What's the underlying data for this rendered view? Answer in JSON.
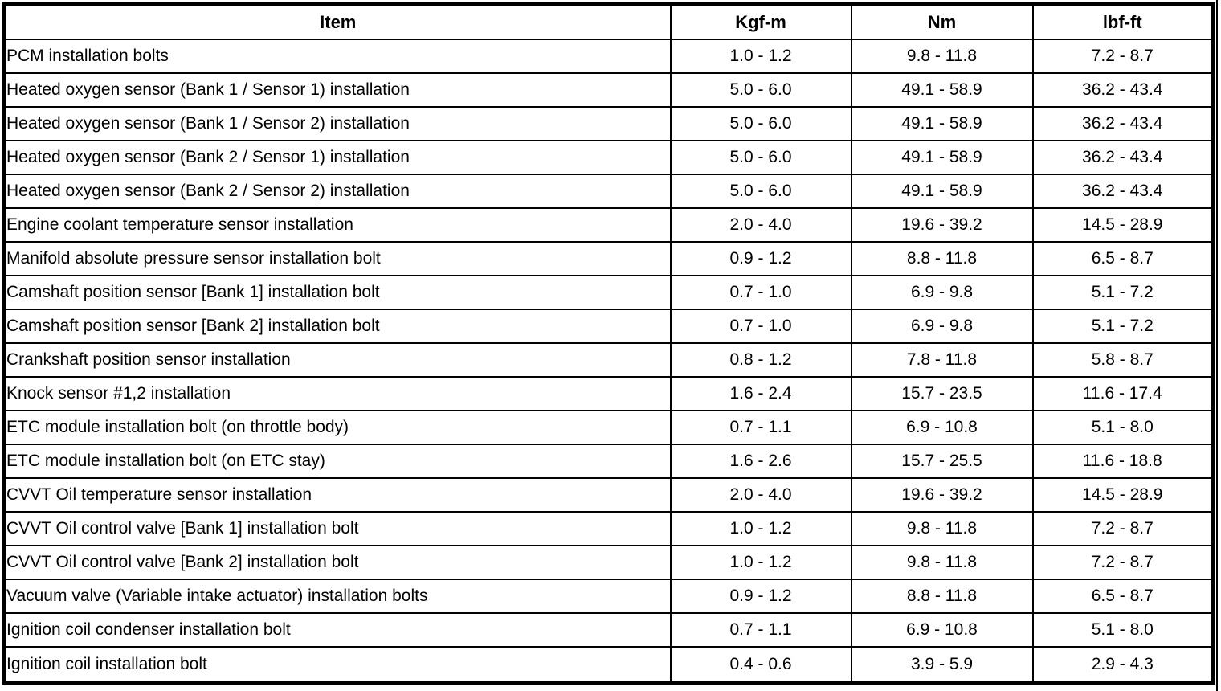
{
  "table": {
    "columns": [
      "Item",
      "Kgf-m",
      "Nm",
      "lbf-ft"
    ],
    "rows": [
      [
        "PCM installation bolts",
        "1.0 - 1.2",
        "9.8 - 11.8",
        "7.2 - 8.7"
      ],
      [
        "Heated oxygen sensor (Bank 1 / Sensor 1) installation",
        "5.0 - 6.0",
        "49.1 - 58.9",
        "36.2 - 43.4"
      ],
      [
        "Heated oxygen sensor (Bank 1 / Sensor 2) installation",
        "5.0 - 6.0",
        "49.1 - 58.9",
        "36.2 - 43.4"
      ],
      [
        "Heated oxygen sensor (Bank 2 / Sensor 1) installation",
        "5.0 - 6.0",
        "49.1 - 58.9",
        "36.2 - 43.4"
      ],
      [
        "Heated oxygen sensor (Bank 2 / Sensor 2) installation",
        "5.0 - 6.0",
        "49.1 - 58.9",
        "36.2 - 43.4"
      ],
      [
        "Engine coolant temperature sensor installation",
        "2.0 - 4.0",
        "19.6 - 39.2",
        "14.5 - 28.9"
      ],
      [
        "Manifold absolute pressure sensor installation bolt",
        "0.9 - 1.2",
        "8.8 - 11.8",
        "6.5 - 8.7"
      ],
      [
        "Camshaft position sensor [Bank 1] installation bolt",
        "0.7 - 1.0",
        "6.9 - 9.8",
        "5.1 - 7.2"
      ],
      [
        "Camshaft position sensor [Bank 2] installation bolt",
        "0.7 - 1.0",
        "6.9 - 9.8",
        "5.1 - 7.2"
      ],
      [
        "Crankshaft position sensor installation",
        "0.8 - 1.2",
        "7.8 - 11.8",
        "5.8 - 8.7"
      ],
      [
        "Knock sensor #1,2 installation",
        "1.6 - 2.4",
        "15.7 - 23.5",
        "11.6 - 17.4"
      ],
      [
        "ETC module installation bolt (on throttle body)",
        "0.7 - 1.1",
        "6.9 - 10.8",
        "5.1 - 8.0"
      ],
      [
        "ETC module installation bolt (on ETC stay)",
        "1.6 - 2.6",
        "15.7 - 25.5",
        "11.6 - 18.8"
      ],
      [
        "CVVT Oil temperature sensor installation",
        "2.0 - 4.0",
        "19.6 - 39.2",
        "14.5 - 28.9"
      ],
      [
        "CVVT Oil control valve [Bank 1] installation bolt",
        "1.0 - 1.2",
        "9.8 - 11.8",
        "7.2 - 8.7"
      ],
      [
        "CVVT Oil control valve [Bank 2] installation bolt",
        "1.0 - 1.2",
        "9.8 - 11.8",
        "7.2 - 8.7"
      ],
      [
        "Vacuum valve (Variable intake actuator) installation bolts",
        "0.9 - 1.2",
        "8.8 - 11.8",
        "6.5 - 8.7"
      ],
      [
        "Ignition coil condenser installation bolt",
        "0.7 - 1.1",
        "6.9 - 10.8",
        "5.1 - 8.0"
      ],
      [
        "Ignition coil installation bolt",
        "0.4 - 0.6",
        "3.9 - 5.9",
        "2.9 - 4.3"
      ]
    ],
    "colors": {
      "border": "#000000",
      "background": "#ffffff",
      "text": "#000000"
    }
  }
}
